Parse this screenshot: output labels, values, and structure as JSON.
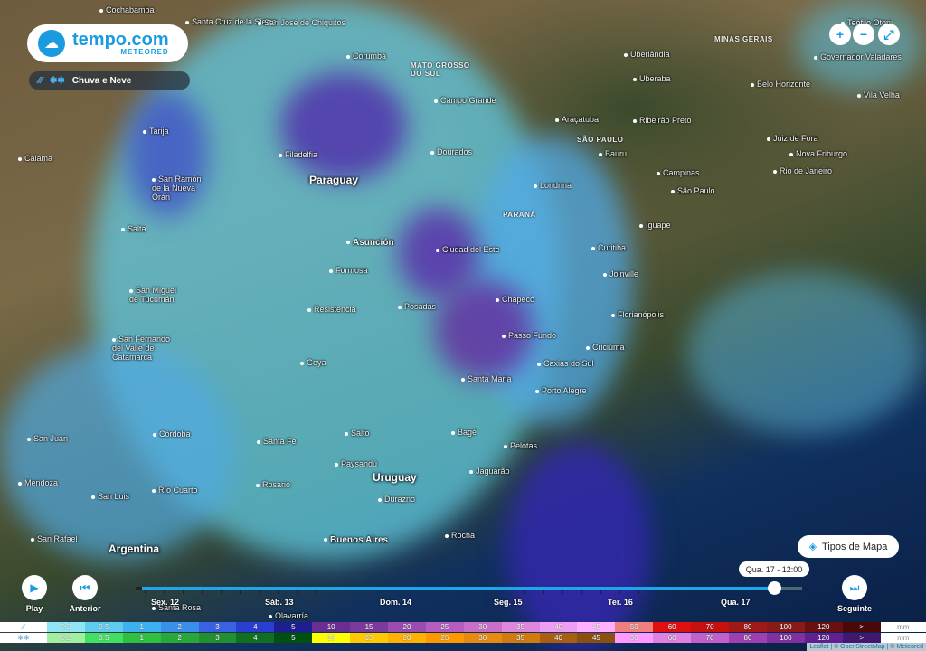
{
  "brand": {
    "name": "tempo.com",
    "sub": "METEORED"
  },
  "layer": {
    "label": "Chuva e Neve",
    "icons": [
      "rain-icon",
      "snow-icon"
    ]
  },
  "controls": {
    "zoom_in": "+",
    "zoom_out": "−",
    "fullscreen": "⤢"
  },
  "map_types": {
    "label": "Tipos de Mapa",
    "icon": "layers-icon"
  },
  "countries": [
    {
      "name": "Paraguay"
    },
    {
      "name": "Uruguay"
    },
    {
      "name": "Argentina"
    }
  ],
  "regions": [
    "MATO GROSSO DO SUL",
    "MINAS GERAIS",
    "SÃO PAULO",
    "PARANÁ"
  ],
  "cities": [
    "Cochabamba",
    "Santa Cruz de la Sierra",
    "San José de Chiquitos",
    "Corumbá",
    "Uberlândia",
    "Governador Valadares",
    "Teófilo Otoni",
    "Uberaba",
    "Belo Horizonte",
    "Vila Velha",
    "Campo Grande",
    "Araçatuba",
    "Ribeirão Preto",
    "Juiz de Fora",
    "Nova Friburgo",
    "Rio de Janeiro",
    "Tarija",
    "Calama",
    "Filadelfia",
    "Dourados",
    "Bauru",
    "Campinas",
    "São Paulo",
    "San Ramón de la Nueva Orán",
    "Londrina",
    "Iguape",
    "Salta",
    "Asunción",
    "Ciudad del Este",
    "Curitiba",
    "Formosa",
    "Joinville",
    "San Miguel de Tucumán",
    "Resistencia",
    "Posadas",
    "Chapecó",
    "Florianópolis",
    "San Fernando del Valle de Catamarca",
    "Passo Fundo",
    "Criciúma",
    "Goya",
    "Caxias do Sul",
    "Santa Maria",
    "Porto Alegre",
    "San Juan",
    "Córdoba",
    "Santa Fe",
    "Salto",
    "Bagé",
    "Pelotas",
    "Paysandú",
    "Mendoza",
    "San Luis",
    "Río Cuarto",
    "Rosario",
    "Durazno",
    "Jaguarão",
    "San Rafael",
    "Buenos Aires",
    "Rocha",
    "Santa Rosa",
    "Olavarría"
  ],
  "timeline": {
    "play": "Play",
    "previous": "Anterior",
    "next": "Seguinte",
    "current": "Qua. 17 - 12:00",
    "progress": 0.89,
    "days": [
      "Sex. 12",
      "Sáb. 13",
      "Dom. 14",
      "Seg. 15",
      "Ter. 16",
      "Qua. 17"
    ]
  },
  "legend": {
    "unit": "mm",
    "values": [
      "0.2",
      "0.5",
      "1",
      "2",
      "3",
      "4",
      "5",
      "10",
      "15",
      "20",
      "25",
      "30",
      "35",
      "40",
      "45",
      "50",
      "60",
      "70",
      "80",
      "100",
      "120",
      ">"
    ],
    "rain_colors": [
      "#8ee6f5",
      "#5fcbee",
      "#3fb0ee",
      "#3a8fe8",
      "#3a62e0",
      "#2a3ed0",
      "#1e1e90",
      "#6a2d90",
      "#7d3a9e",
      "#9a4cb0",
      "#b45cc0",
      "#c870c8",
      "#dd88dd",
      "#ee9ef0",
      "#ffb0ff",
      "#f08080",
      "#e01010",
      "#c81010",
      "#a01818",
      "#8a1a1a",
      "#6a1010",
      "#4a0808"
    ],
    "snow_colors": [
      "#a0f0a0",
      "#40e060",
      "#30c040",
      "#28a838",
      "#209030",
      "#107020",
      "#005010",
      "#ffff00",
      "#ffc800",
      "#ffb000",
      "#ff9800",
      "#e88a10",
      "#d07a10",
      "#a86010",
      "#8a5010",
      "#ff99ff",
      "#e080e0",
      "#c060c8",
      "#a040b0",
      "#8030a0",
      "#602090",
      "#401870"
    ],
    "rain_icon": "rain-icon",
    "snow_icon": "snow-icon"
  },
  "attribution": "Leaflet | © OpenStreetMap | © Meteored"
}
